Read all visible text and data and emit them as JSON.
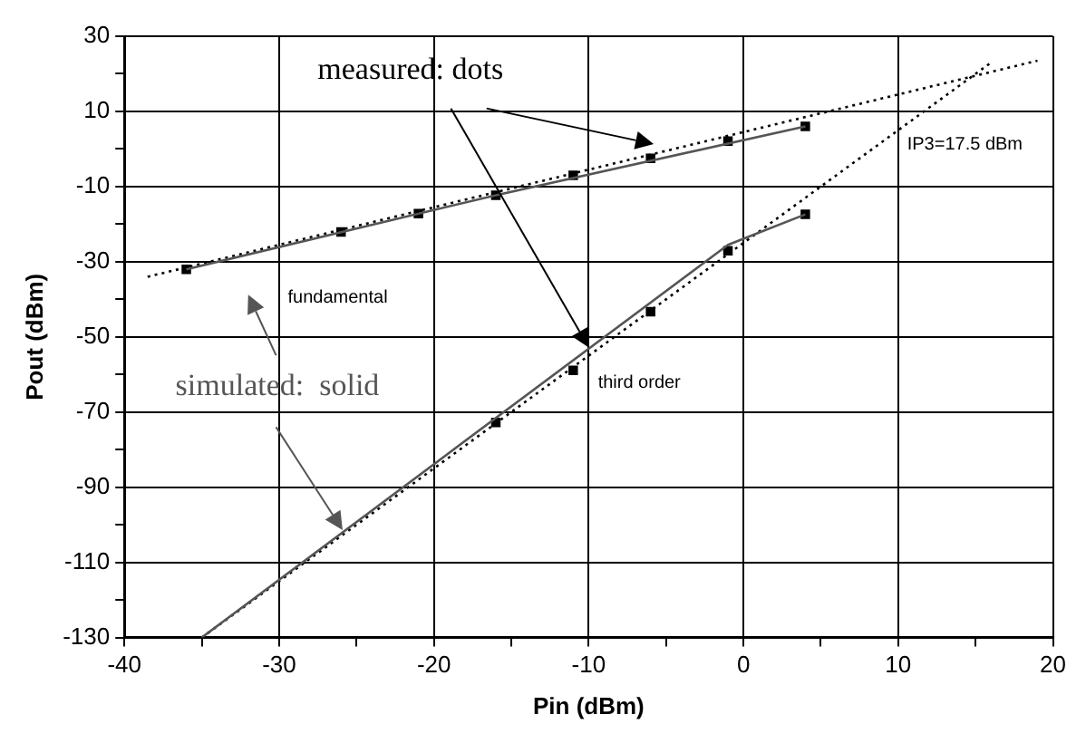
{
  "chart_data": {
    "type": "line",
    "xlabel": "Pin (dBm)",
    "ylabel": "Pout (dBm)",
    "xlim": [
      -40,
      20
    ],
    "ylim": [
      -130,
      30
    ],
    "xticks": [
      -40,
      {
        "value": -35,
        "label": null
      },
      -30,
      {
        "value": -25,
        "label": null
      },
      -20,
      {
        "value": -15,
        "label": null
      },
      -10,
      {
        "value": -5,
        "label": null
      },
      0,
      {
        "value": 5,
        "label": null
      },
      10,
      {
        "value": 15,
        "label": null
      },
      20
    ],
    "yticks": [
      -130,
      {
        "value": -120,
        "label": null
      },
      -110,
      {
        "value": -100,
        "label": null
      },
      -90,
      {
        "value": -80,
        "label": null
      },
      -70,
      {
        "value": -60,
        "label": null
      },
      -50,
      {
        "value": -40,
        "label": null
      },
      -30,
      {
        "value": -20,
        "label": null
      },
      -10,
      {
        "value": 0,
        "label": null
      },
      10,
      {
        "value": 20,
        "label": null
      },
      30
    ],
    "grid": true,
    "legend": false,
    "series": [
      {
        "color": "#555555",
        "line_style": "solid",
        "marker": "none",
        "x": [
          -36,
          -16,
          4
        ],
        "values": [
          -32,
          -12.3,
          6
        ]
      },
      {
        "color": "#555555",
        "line_style": "solid",
        "marker": "none",
        "x": [
          -35,
          -1,
          4
        ],
        "values": [
          -130,
          -25.5,
          -17.4
        ]
      },
      {
        "color": "#000000",
        "line_style": "dotted",
        "marker": "none",
        "x": [
          -38.5,
          19
        ],
        "values": [
          -34,
          23.5
        ]
      },
      {
        "color": "#000000",
        "line_style": "dotted",
        "marker": "none",
        "x": [
          -35,
          16
        ],
        "values": [
          -130,
          23
        ]
      },
      {
        "type": "scatter",
        "color": "#000000",
        "marker": "square",
        "x": [
          -36,
          -26,
          -21,
          -16,
          -11,
          -6,
          -1,
          4
        ],
        "values": [
          -32,
          -22.1,
          -17.2,
          -12.3,
          -7,
          -2.5,
          2.1,
          6
        ]
      },
      {
        "type": "scatter",
        "color": "#000000",
        "marker": "square",
        "x": [
          -16,
          -11,
          -6,
          -1,
          4
        ],
        "values": [
          -72.8,
          -58.9,
          -43.3,
          -27.1,
          -17.4
        ]
      }
    ],
    "annotations": [
      "measured: dots",
      "IP3=17.5 dBm",
      "fundamental",
      "third order",
      "simulated:  solid"
    ]
  }
}
